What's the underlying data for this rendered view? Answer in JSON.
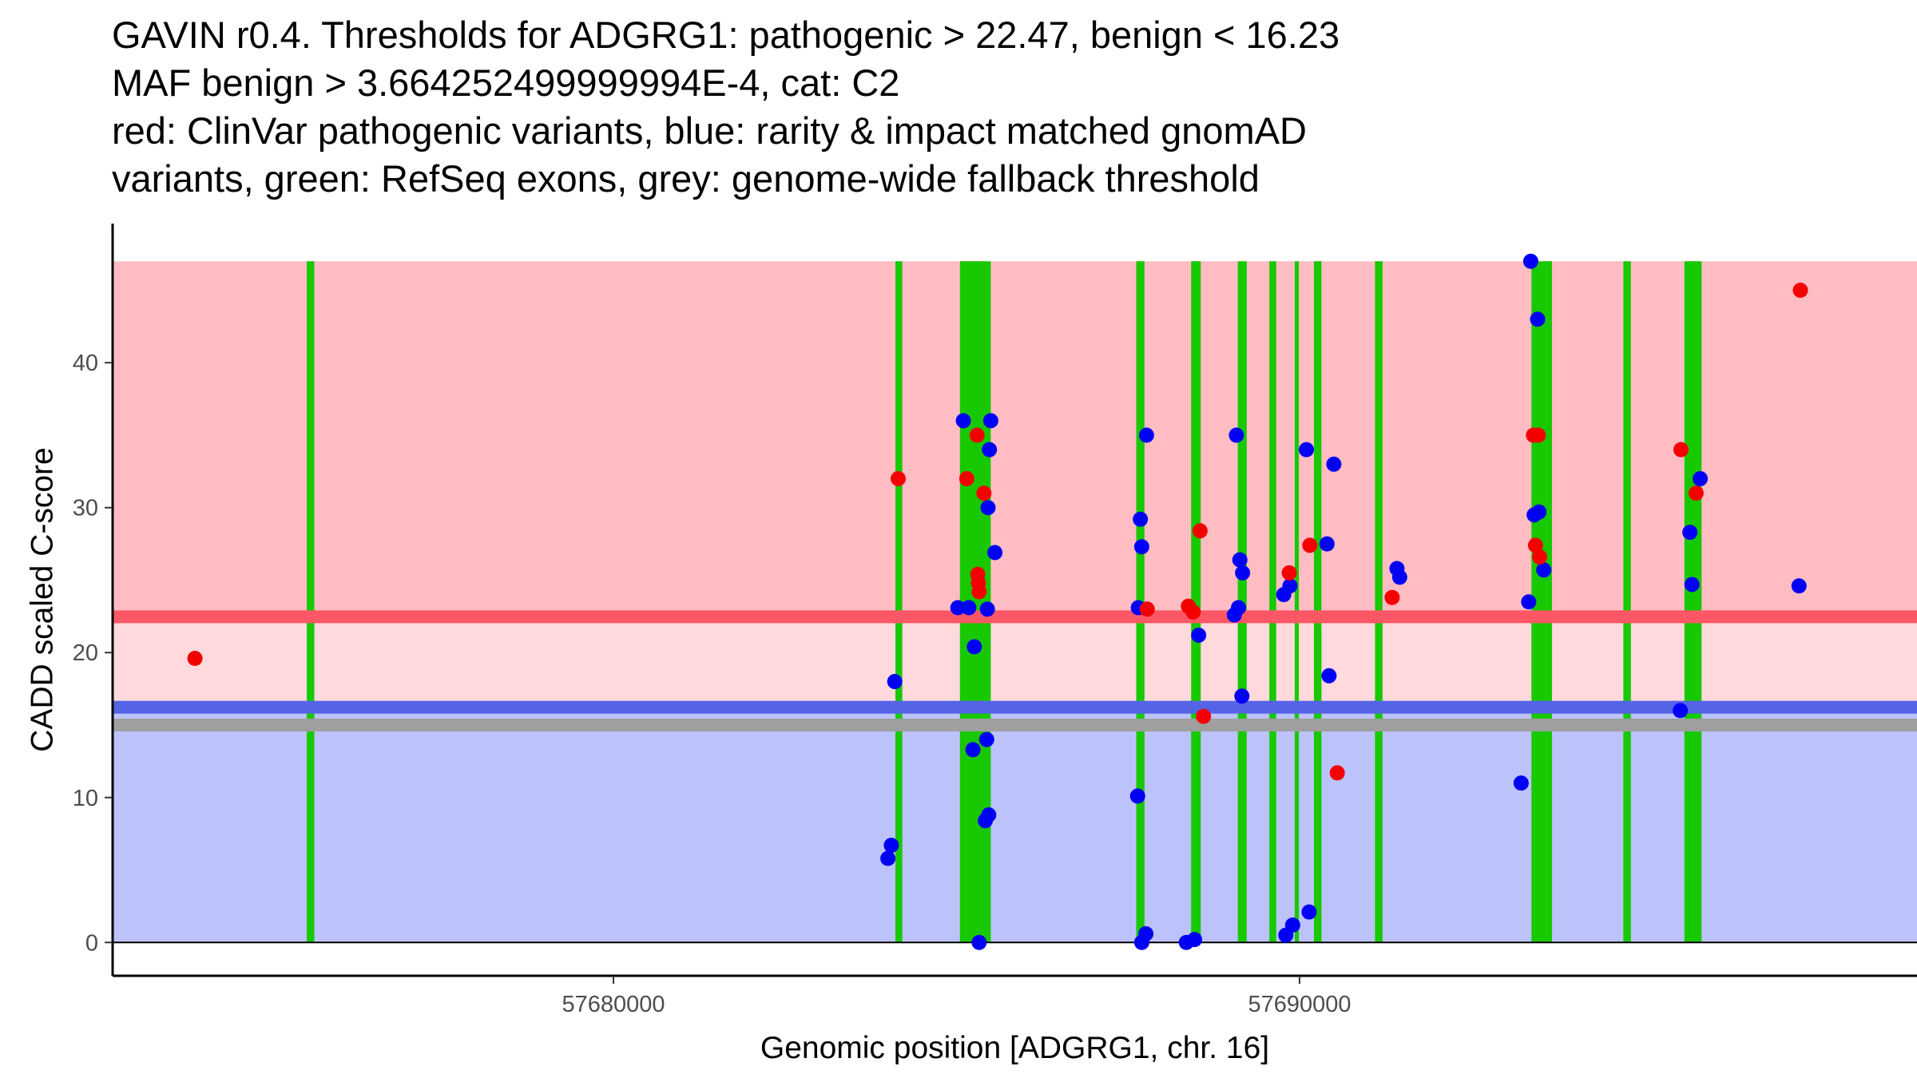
{
  "chart_data": {
    "type": "scatter",
    "title_lines": [
      "GAVIN r0.4. Thresholds for ADGRG1: pathogenic > 22.47, benign < 16.23",
      "MAF benign > 3.664252499999994E-4, cat: C2",
      "red: ClinVar pathogenic variants, blue: rarity & impact matched gnomAD",
      "variants, green: RefSeq exons, grey: genome-wide fallback threshold"
    ],
    "xlabel": "Genomic position [ADGRG1, chr. 16]",
    "ylabel": "CADD scaled C-score",
    "xlim": [
      57672700,
      57699000
    ],
    "ylim": [
      -2.3,
      49.6
    ],
    "x_ticks": [
      57680000,
      57690000
    ],
    "x_tick_labels": [
      "57680000",
      "57690000"
    ],
    "y_ticks": [
      0,
      10,
      20,
      30,
      40
    ],
    "y_tick_labels": [
      "0",
      "10",
      "20",
      "30",
      "40"
    ],
    "thresholds": {
      "pathogenic": 22.47,
      "benign": 16.23,
      "genome_wide_fallback": 15
    },
    "score_max": 47,
    "colors": {
      "pathogenic_region": "#ffbdc3",
      "between_region": "#ffd9dc",
      "benign_region": "#bcc2fa",
      "pathogenic_line": "#fd5766",
      "benign_line": "#5564e6",
      "fallback_line": "#9f9f9f",
      "exon": "#18c901",
      "clinvar_point": "#f40000",
      "gnomad_point": "#0000f4"
    },
    "exons": [
      [
        57675530,
        57675640
      ],
      [
        57684110,
        57684210
      ],
      [
        57685050,
        57685500
      ],
      [
        57687620,
        57687740
      ],
      [
        57688420,
        57688560
      ],
      [
        57689100,
        57689230
      ],
      [
        57689560,
        57689660
      ],
      [
        57689930,
        57689990
      ],
      [
        57690210,
        57690320
      ],
      [
        57691100,
        57691210
      ],
      [
        57693380,
        57693680
      ],
      [
        57694720,
        57694830
      ],
      [
        57695610,
        57695860
      ]
    ],
    "series": [
      {
        "name": "ClinVar pathogenic variants",
        "color_key": "clinvar_point",
        "points": [
          [
            57673900,
            19.6
          ],
          [
            57684150,
            32.0
          ],
          [
            57685150,
            32.0
          ],
          [
            57685300,
            35.0
          ],
          [
            57685310,
            25.4
          ],
          [
            57685320,
            24.8
          ],
          [
            57685330,
            24.2
          ],
          [
            57685400,
            31.0
          ],
          [
            57687780,
            23.0
          ],
          [
            57688380,
            23.2
          ],
          [
            57688450,
            22.8
          ],
          [
            57688550,
            28.4
          ],
          [
            57688600,
            15.6
          ],
          [
            57689850,
            25.5
          ],
          [
            57690150,
            27.4
          ],
          [
            57690550,
            11.7
          ],
          [
            57691350,
            23.8
          ],
          [
            57693410,
            35.0
          ],
          [
            57693440,
            27.4
          ],
          [
            57693480,
            35.0
          ],
          [
            57693500,
            26.6
          ],
          [
            57695560,
            34.0
          ],
          [
            57695780,
            31.0
          ],
          [
            57697300,
            45.0
          ]
        ]
      },
      {
        "name": "rarity & impact matched gnomAD variants",
        "color_key": "gnomad_point",
        "points": [
          [
            57684050,
            6.7
          ],
          [
            57684000,
            5.8
          ],
          [
            57684100,
            18.0
          ],
          [
            57685020,
            23.1
          ],
          [
            57685100,
            36.0
          ],
          [
            57685180,
            23.1
          ],
          [
            57685240,
            13.3
          ],
          [
            57685260,
            20.4
          ],
          [
            57685330,
            0.0
          ],
          [
            57685420,
            8.4
          ],
          [
            57685470,
            8.8
          ],
          [
            57685440,
            14.0
          ],
          [
            57685450,
            23.0
          ],
          [
            57685460,
            30.0
          ],
          [
            57685480,
            34.0
          ],
          [
            57685500,
            36.0
          ],
          [
            57685560,
            26.9
          ],
          [
            57687650,
            23.1
          ],
          [
            57687680,
            29.2
          ],
          [
            57687700,
            27.3
          ],
          [
            57687700,
            0.0
          ],
          [
            57687640,
            10.1
          ],
          [
            57687760,
            0.6
          ],
          [
            57687770,
            35.0
          ],
          [
            57688350,
            0.0
          ],
          [
            57688470,
            0.2
          ],
          [
            57688530,
            21.2
          ],
          [
            57689050,
            22.6
          ],
          [
            57689110,
            23.1
          ],
          [
            57689130,
            26.4
          ],
          [
            57689160,
            17.0
          ],
          [
            57689170,
            25.5
          ],
          [
            57689080,
            35.0
          ],
          [
            57689770,
            24.0
          ],
          [
            57689800,
            0.5
          ],
          [
            57689860,
            24.6
          ],
          [
            57689900,
            1.2
          ],
          [
            57690100,
            34.0
          ],
          [
            57690140,
            2.1
          ],
          [
            57690400,
            27.5
          ],
          [
            57690430,
            18.4
          ],
          [
            57690500,
            33.0
          ],
          [
            57691420,
            25.8
          ],
          [
            57691460,
            25.2
          ],
          [
            57693230,
            11.0
          ],
          [
            57693340,
            23.5
          ],
          [
            57693370,
            47.0
          ],
          [
            57693420,
            29.5
          ],
          [
            57693470,
            43.0
          ],
          [
            57693490,
            29.7
          ],
          [
            57693560,
            25.7
          ],
          [
            57695550,
            16.0
          ],
          [
            57695690,
            28.3
          ],
          [
            57695720,
            24.7
          ],
          [
            57695840,
            32.0
          ],
          [
            57697280,
            24.6
          ]
        ]
      }
    ]
  }
}
